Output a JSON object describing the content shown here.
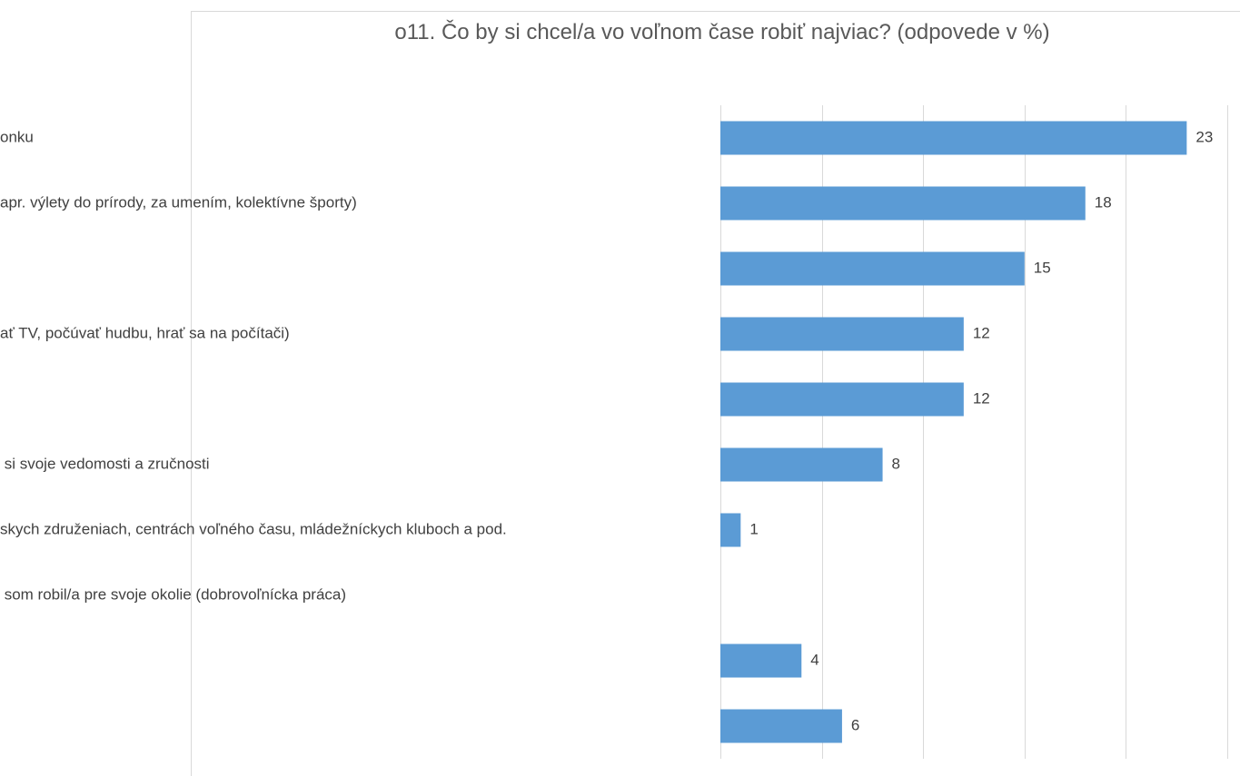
{
  "chart_data": {
    "type": "bar",
    "orientation": "horizontal",
    "title": "o11. Čo by si chcel/a vo voľnom čase robiť najviac? (odpovede v %)",
    "categories": [
      "onku",
      "apr. výlety do prírody, za umením, kolektívne športy)",
      null,
      "ať TV, počúvať hudbu, hrať sa na počítači)",
      null,
      " si svoje vedomosti a zručnosti",
      "skych združeniach, centrách voľného času, mládežníckych kluboch a pod.",
      " som robil/a pre svoje okolie (dobrovoľnícka práca)",
      null,
      null
    ],
    "values": [
      23,
      18,
      15,
      12,
      12,
      8,
      1,
      null,
      4,
      6
    ],
    "color": "#5b9bd5",
    "xlim": [
      0,
      25
    ],
    "xticks": [
      0,
      5,
      10,
      15,
      20,
      25
    ],
    "grid": true
  }
}
